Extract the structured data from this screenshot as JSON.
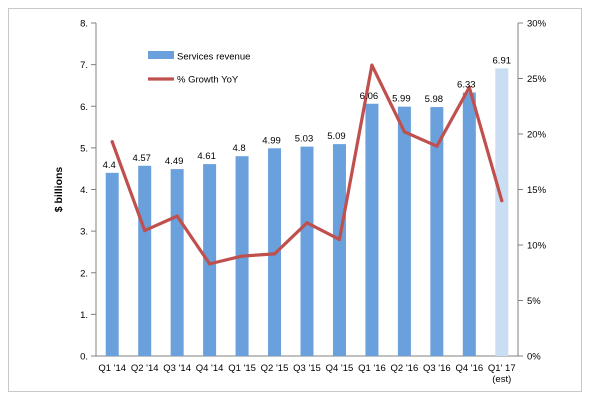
{
  "chart_data": {
    "type": "bar",
    "categories": [
      "Q1 '14",
      "Q2 '14",
      "Q3 '14",
      "Q4 '14",
      "Q1 '15",
      "Q2 '15",
      "Q3 '15",
      "Q4 '15",
      "Q1 '16",
      "Q2 '16",
      "Q3 '16",
      "Q4 '16",
      "Q1' 17\n(est)"
    ],
    "series": [
      {
        "name": "Services revenue",
        "type": "bar",
        "axis": "left",
        "color": "#6aa0dc",
        "values": [
          4.4,
          4.57,
          4.49,
          4.61,
          4.8,
          4.99,
          5.03,
          5.09,
          6.06,
          5.99,
          5.98,
          6.33,
          6.91
        ],
        "labels": [
          "4.4",
          "4.57",
          "4.49",
          "4.61",
          "4.8",
          "4.99",
          "5.03",
          "5.09",
          "6.06",
          "5.99",
          "5.98",
          "6.33",
          "6.91"
        ]
      },
      {
        "name": "% Growth YoY",
        "type": "line",
        "axis": "right",
        "color": "#c0504d",
        "values": [
          19.3,
          11.3,
          12.6,
          8.3,
          9.0,
          9.2,
          12.0,
          10.5,
          26.2,
          20.2,
          18.9,
          24.2,
          14.0
        ]
      }
    ],
    "highlight_color": "#c9ddf3",
    "ylabel": "$ billions",
    "ylim": [
      0,
      8
    ],
    "yticks": [
      "0.",
      "1.",
      "2.",
      "3.",
      "4.",
      "5.",
      "6.",
      "7.",
      "8."
    ],
    "y2lim": [
      0,
      30
    ],
    "y2ticks": [
      "0%",
      "5%",
      "10%",
      "15%",
      "20%",
      "25%",
      "30%"
    ],
    "legend": {
      "placement": "top-left",
      "entries": [
        {
          "label": "Services revenue",
          "marker": "bar",
          "color": "#6aa0dc"
        },
        {
          "label": "% Growth YoY",
          "marker": "line",
          "color": "#c0504d"
        }
      ]
    },
    "grid": false
  }
}
